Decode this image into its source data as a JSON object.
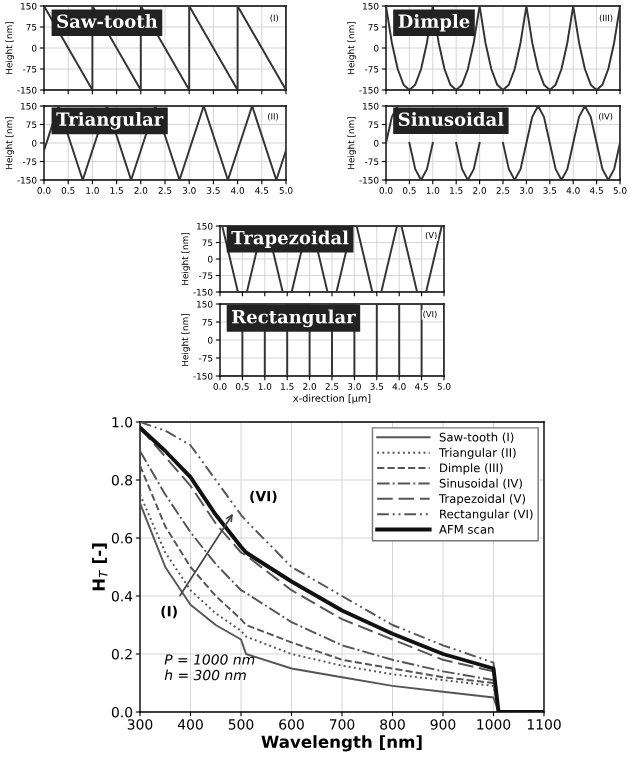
{
  "chart_data": [
    {
      "type": "line",
      "title": "Saw-tooth",
      "ylabel": "Height [nm]",
      "annotations": [
        "(I)"
      ],
      "xlim": [
        0,
        5
      ],
      "ylim": [
        -150,
        150
      ],
      "xticks": [
        0,
        0.5,
        1,
        1.5,
        2,
        2.5,
        3,
        3.5,
        4,
        4.5,
        5
      ],
      "yticks": [
        -150,
        -75,
        0,
        75,
        150
      ],
      "tick_labels": "y",
      "grid": true,
      "series": [
        {
          "color": "#333333",
          "x": [
            0,
            1,
            1,
            2,
            2,
            3,
            3,
            4,
            4,
            5,
            5
          ],
          "values": [
            150,
            -150,
            150,
            -150,
            150,
            -150,
            150,
            -150,
            150,
            -150,
            150
          ]
        }
      ]
    },
    {
      "type": "line",
      "title": "Dimple",
      "ylabel": "Height [nm]",
      "annotations": [
        "(III)"
      ],
      "xlim": [
        0,
        5
      ],
      "ylim": [
        -150,
        150
      ],
      "xticks": [
        0,
        0.5,
        1,
        1.5,
        2,
        2.5,
        3,
        3.5,
        4,
        4.5,
        5
      ],
      "yticks": [
        -150,
        -75,
        0,
        75,
        150
      ],
      "tick_labels": "y",
      "grid": true,
      "series": [
        {
          "color": "#333333",
          "x": [
            0,
            0.125,
            0.25,
            0.375,
            0.5,
            0.625,
            0.75,
            0.875,
            1,
            1.125,
            1.25,
            1.375,
            1.5,
            1.625,
            1.75,
            1.875,
            2,
            2.125,
            2.25,
            2.375,
            2.5,
            2.625,
            2.75,
            2.875,
            3,
            3.125,
            3.25,
            3.375,
            3.5,
            3.625,
            3.75,
            3.875,
            4,
            4.125,
            4.25,
            4.375,
            4.5,
            4.625,
            4.75,
            4.875,
            5
          ],
          "values": [
            150,
            19,
            -75,
            -131,
            -150,
            -131,
            -75,
            19,
            150,
            19,
            -75,
            -131,
            -150,
            -131,
            -75,
            19,
            150,
            19,
            -75,
            -131,
            -150,
            -131,
            -75,
            19,
            150,
            19,
            -75,
            -131,
            -150,
            -131,
            -75,
            19,
            150,
            19,
            -75,
            -131,
            -150,
            -131,
            -75,
            19,
            150
          ]
        }
      ]
    },
    {
      "type": "line",
      "title": "Triangular",
      "ylabel": "Height [nm]",
      "annotations": [
        "(II)"
      ],
      "xlim": [
        0,
        5
      ],
      "ylim": [
        -150,
        150
      ],
      "xticks": [
        {
          "value": 0,
          "label": "0.0"
        },
        {
          "value": 0.5,
          "label": "0.5"
        },
        {
          "value": 1,
          "label": "1.0"
        },
        {
          "value": 1.5,
          "label": "1.5"
        },
        {
          "value": 2,
          "label": "2.0"
        },
        {
          "value": 2.5,
          "label": "2.5"
        },
        {
          "value": 3,
          "label": "3.0"
        },
        {
          "value": 3.5,
          "label": "3.5"
        },
        {
          "value": 4,
          "label": "4.0"
        },
        {
          "value": 4.5,
          "label": "4.5"
        },
        {
          "value": 5,
          "label": "5.0"
        }
      ],
      "yticks": [
        -150,
        -75,
        0,
        75,
        150
      ],
      "grid": true,
      "series": [
        {
          "color": "#333333",
          "x": [
            0,
            0.3,
            0.8,
            1.3,
            1.8,
            2.3,
            2.8,
            3.3,
            3.8,
            4.3,
            4.8,
            5
          ],
          "values": [
            -30,
            150,
            -150,
            150,
            -150,
            150,
            -150,
            150,
            -150,
            150,
            -150,
            -30
          ]
        }
      ]
    },
    {
      "type": "line",
      "title": "Sinusoidal",
      "ylabel": "Height [nm]",
      "annotations": [
        "(IV)"
      ],
      "xlim": [
        0,
        5
      ],
      "ylim": [
        -150,
        150
      ],
      "xticks": [
        {
          "value": 0,
          "label": "0.0"
        },
        {
          "value": 0.5,
          "label": "0.5"
        },
        {
          "value": 1,
          "label": "1.0"
        },
        {
          "value": 1.5,
          "label": "1.5"
        },
        {
          "value": 2,
          "label": "2.0"
        },
        {
          "value": 2.5,
          "label": "2.5"
        },
        {
          "value": 3,
          "label": "3.0"
        },
        {
          "value": 3.5,
          "label": "3.5"
        },
        {
          "value": 4,
          "label": "4.0"
        },
        {
          "value": 4.5,
          "label": "4.5"
        },
        {
          "value": 5,
          "label": "5.0"
        }
      ],
      "yticks": [
        -150,
        -75,
        0,
        75,
        150
      ],
      "grid": true,
      "series": [
        {
          "color": "#333333",
          "x": [
            0,
            0.125,
            0.25,
            0.375,
            0.5,
            0.625,
            0.75,
            0.875,
            1,
            1.125,
            1.25,
            1.375,
            1.5,
            1.625,
            1.75,
            1.875,
            2,
            2.125,
            2.25,
            2.375,
            2.5,
            2.625,
            2.75,
            2.875,
            3,
            3.125,
            3.25,
            3.375,
            3.5,
            3.625,
            3.75,
            3.875,
            4,
            4.125,
            4.25,
            4.375,
            4.5,
            4.625,
            4.75,
            4.875,
            5
          ],
          "values": [
            0,
            106,
            150,
            null,
            0,
            -106,
            -150,
            -106,
            0,
            null,
            null,
            null,
            0,
            -106,
            -150,
            -106,
            0,
            null,
            null,
            null,
            0,
            -106,
            -150,
            -106,
            0,
            106,
            150,
            106,
            0,
            -106,
            -150,
            -106,
            0,
            106,
            150,
            106,
            0,
            -106,
            -150,
            -106,
            0
          ]
        }
      ]
    },
    {
      "type": "line",
      "title": "Trapezoidal",
      "ylabel": "Height [nm]",
      "annotations": [
        "(V)"
      ],
      "xlim": [
        0,
        5
      ],
      "ylim": [
        -150,
        150
      ],
      "xticks": [
        0,
        0.5,
        1,
        1.5,
        2,
        2.5,
        3,
        3.5,
        4,
        4.5,
        5
      ],
      "yticks": [
        -150,
        -75,
        0,
        75,
        150
      ],
      "tick_labels": "y",
      "grid": true,
      "series": [
        {
          "color": "#333333",
          "x": [
            0,
            0.05,
            0.4,
            0.6,
            0.95,
            1.05,
            1.4,
            1.6,
            1.95,
            2.05,
            2.4,
            2.6,
            2.95,
            3.05,
            3.4,
            3.6,
            3.95,
            4.05,
            4.4,
            4.6,
            4.95,
            5
          ],
          "values": [
            150,
            150,
            -150,
            -150,
            150,
            150,
            -150,
            -150,
            150,
            150,
            -150,
            -150,
            150,
            150,
            -150,
            -150,
            150,
            150,
            -150,
            -150,
            150,
            150
          ]
        }
      ]
    },
    {
      "type": "line",
      "title": "Rectangular",
      "ylabel": "Height [nm]",
      "xlabel": "x-direction [µm]",
      "annotations": [
        "(VI)"
      ],
      "xlim": [
        0,
        5
      ],
      "ylim": [
        -150,
        150
      ],
      "xticks": [
        {
          "value": 0,
          "label": "0.0"
        },
        {
          "value": 0.5,
          "label": "0.5"
        },
        {
          "value": 1,
          "label": "1.0"
        },
        {
          "value": 1.5,
          "label": "1.5"
        },
        {
          "value": 2,
          "label": "2.0"
        },
        {
          "value": 2.5,
          "label": "2.5"
        },
        {
          "value": 3,
          "label": "3.0"
        },
        {
          "value": 3.5,
          "label": "3.5"
        },
        {
          "value": 4,
          "label": "4.0"
        },
        {
          "value": 4.5,
          "label": "4.5"
        },
        {
          "value": 5,
          "label": "5.0"
        }
      ],
      "yticks": [
        -150,
        -75,
        0,
        75,
        150
      ],
      "grid": true,
      "series": [
        {
          "color": "#333333",
          "x": [
            0,
            0.5,
            0.5,
            1,
            1,
            1.5,
            1.5,
            2,
            2,
            2.5,
            2.5,
            3,
            3,
            3.5,
            3.5,
            4,
            4,
            4.5,
            4.5,
            5,
            5
          ],
          "values": [
            -150,
            -150,
            150,
            150,
            -150,
            -150,
            150,
            150,
            -150,
            -150,
            150,
            150,
            -150,
            -150,
            150,
            150,
            -150,
            -150,
            150,
            150,
            -150
          ]
        }
      ]
    },
    {
      "type": "line",
      "xlabel": "Wavelength [nm]",
      "ylabel": "H$_{T}$ [-]",
      "annotations": [
        "(VI)",
        {
          "text": "(I)",
          "x": 490,
          "y": 0.7
        },
        "P = 1000 nm\nh = 300 nm"
      ],
      "xlim": [
        300,
        1100
      ],
      "ylim": [
        0,
        1.0
      ],
      "xticks": [
        300,
        400,
        500,
        600,
        700,
        800,
        900,
        1000,
        1100
      ],
      "yticks": [
        {
          "value": 0,
          "label": "0.0"
        },
        {
          "value": 0.2,
          "label": "0.2"
        },
        {
          "value": 0.4,
          "label": "0.4"
        },
        {
          "value": 0.6,
          "label": "0.6"
        },
        {
          "value": 0.8,
          "label": "0.8"
        },
        {
          "value": 1.0,
          "label": "1.0"
        }
      ],
      "grid": true,
      "legend": "top right",
      "x": [
        300,
        350,
        400,
        450,
        500,
        510,
        600,
        700,
        800,
        900,
        1000,
        1010,
        1100
      ],
      "series": [
        {
          "name": "Saw-tooth (I)",
          "color": "#555555",
          "line_style": "solid",
          "values": [
            0.72,
            0.5,
            0.37,
            0.3,
            0.25,
            0.2,
            0.15,
            0.12,
            0.09,
            0.07,
            0.05,
            0,
            0
          ]
        },
        {
          "name": "Triangular (II)",
          "color": "#555555",
          "line_style": "dotted",
          "values": [
            0.75,
            0.55,
            0.42,
            0.34,
            0.28,
            0.26,
            0.2,
            0.16,
            0.13,
            0.11,
            0.09,
            0,
            0
          ]
        },
        {
          "name": "Dimple (III)",
          "color": "#555555",
          "line_style": "dashed",
          "values": [
            0.85,
            0.64,
            0.5,
            0.4,
            0.32,
            0.3,
            0.24,
            0.18,
            0.15,
            0.12,
            0.1,
            0,
            0
          ]
        },
        {
          "name": "Sinusoidal (IV)",
          "color": "#555555",
          "line_style": "dashdot",
          "values": [
            0.9,
            0.75,
            0.62,
            0.51,
            0.42,
            0.41,
            0.31,
            0.23,
            0.18,
            0.14,
            0.11,
            0,
            0
          ]
        },
        {
          "name": "Trapezoidal (V)",
          "color": "#555555",
          "line_style": "longdash",
          "values": [
            0.98,
            0.88,
            0.78,
            0.65,
            0.55,
            0.54,
            0.42,
            0.32,
            0.25,
            0.18,
            0.14,
            0,
            0
          ]
        },
        {
          "name": "Rectangular (VI)",
          "color": "#555555",
          "line_style": "dashdotdot",
          "values": [
            1.0,
            0.97,
            0.92,
            0.8,
            0.68,
            0.66,
            0.5,
            0.4,
            0.3,
            0.23,
            0.17,
            0,
            0
          ]
        },
        {
          "name": "AFM scan",
          "color": "#111111",
          "line_style": "solid",
          "values": [
            0.98,
            0.9,
            0.81,
            0.68,
            0.57,
            0.55,
            0.45,
            0.35,
            0.27,
            0.2,
            0.15,
            0,
            0
          ]
        }
      ]
    }
  ]
}
